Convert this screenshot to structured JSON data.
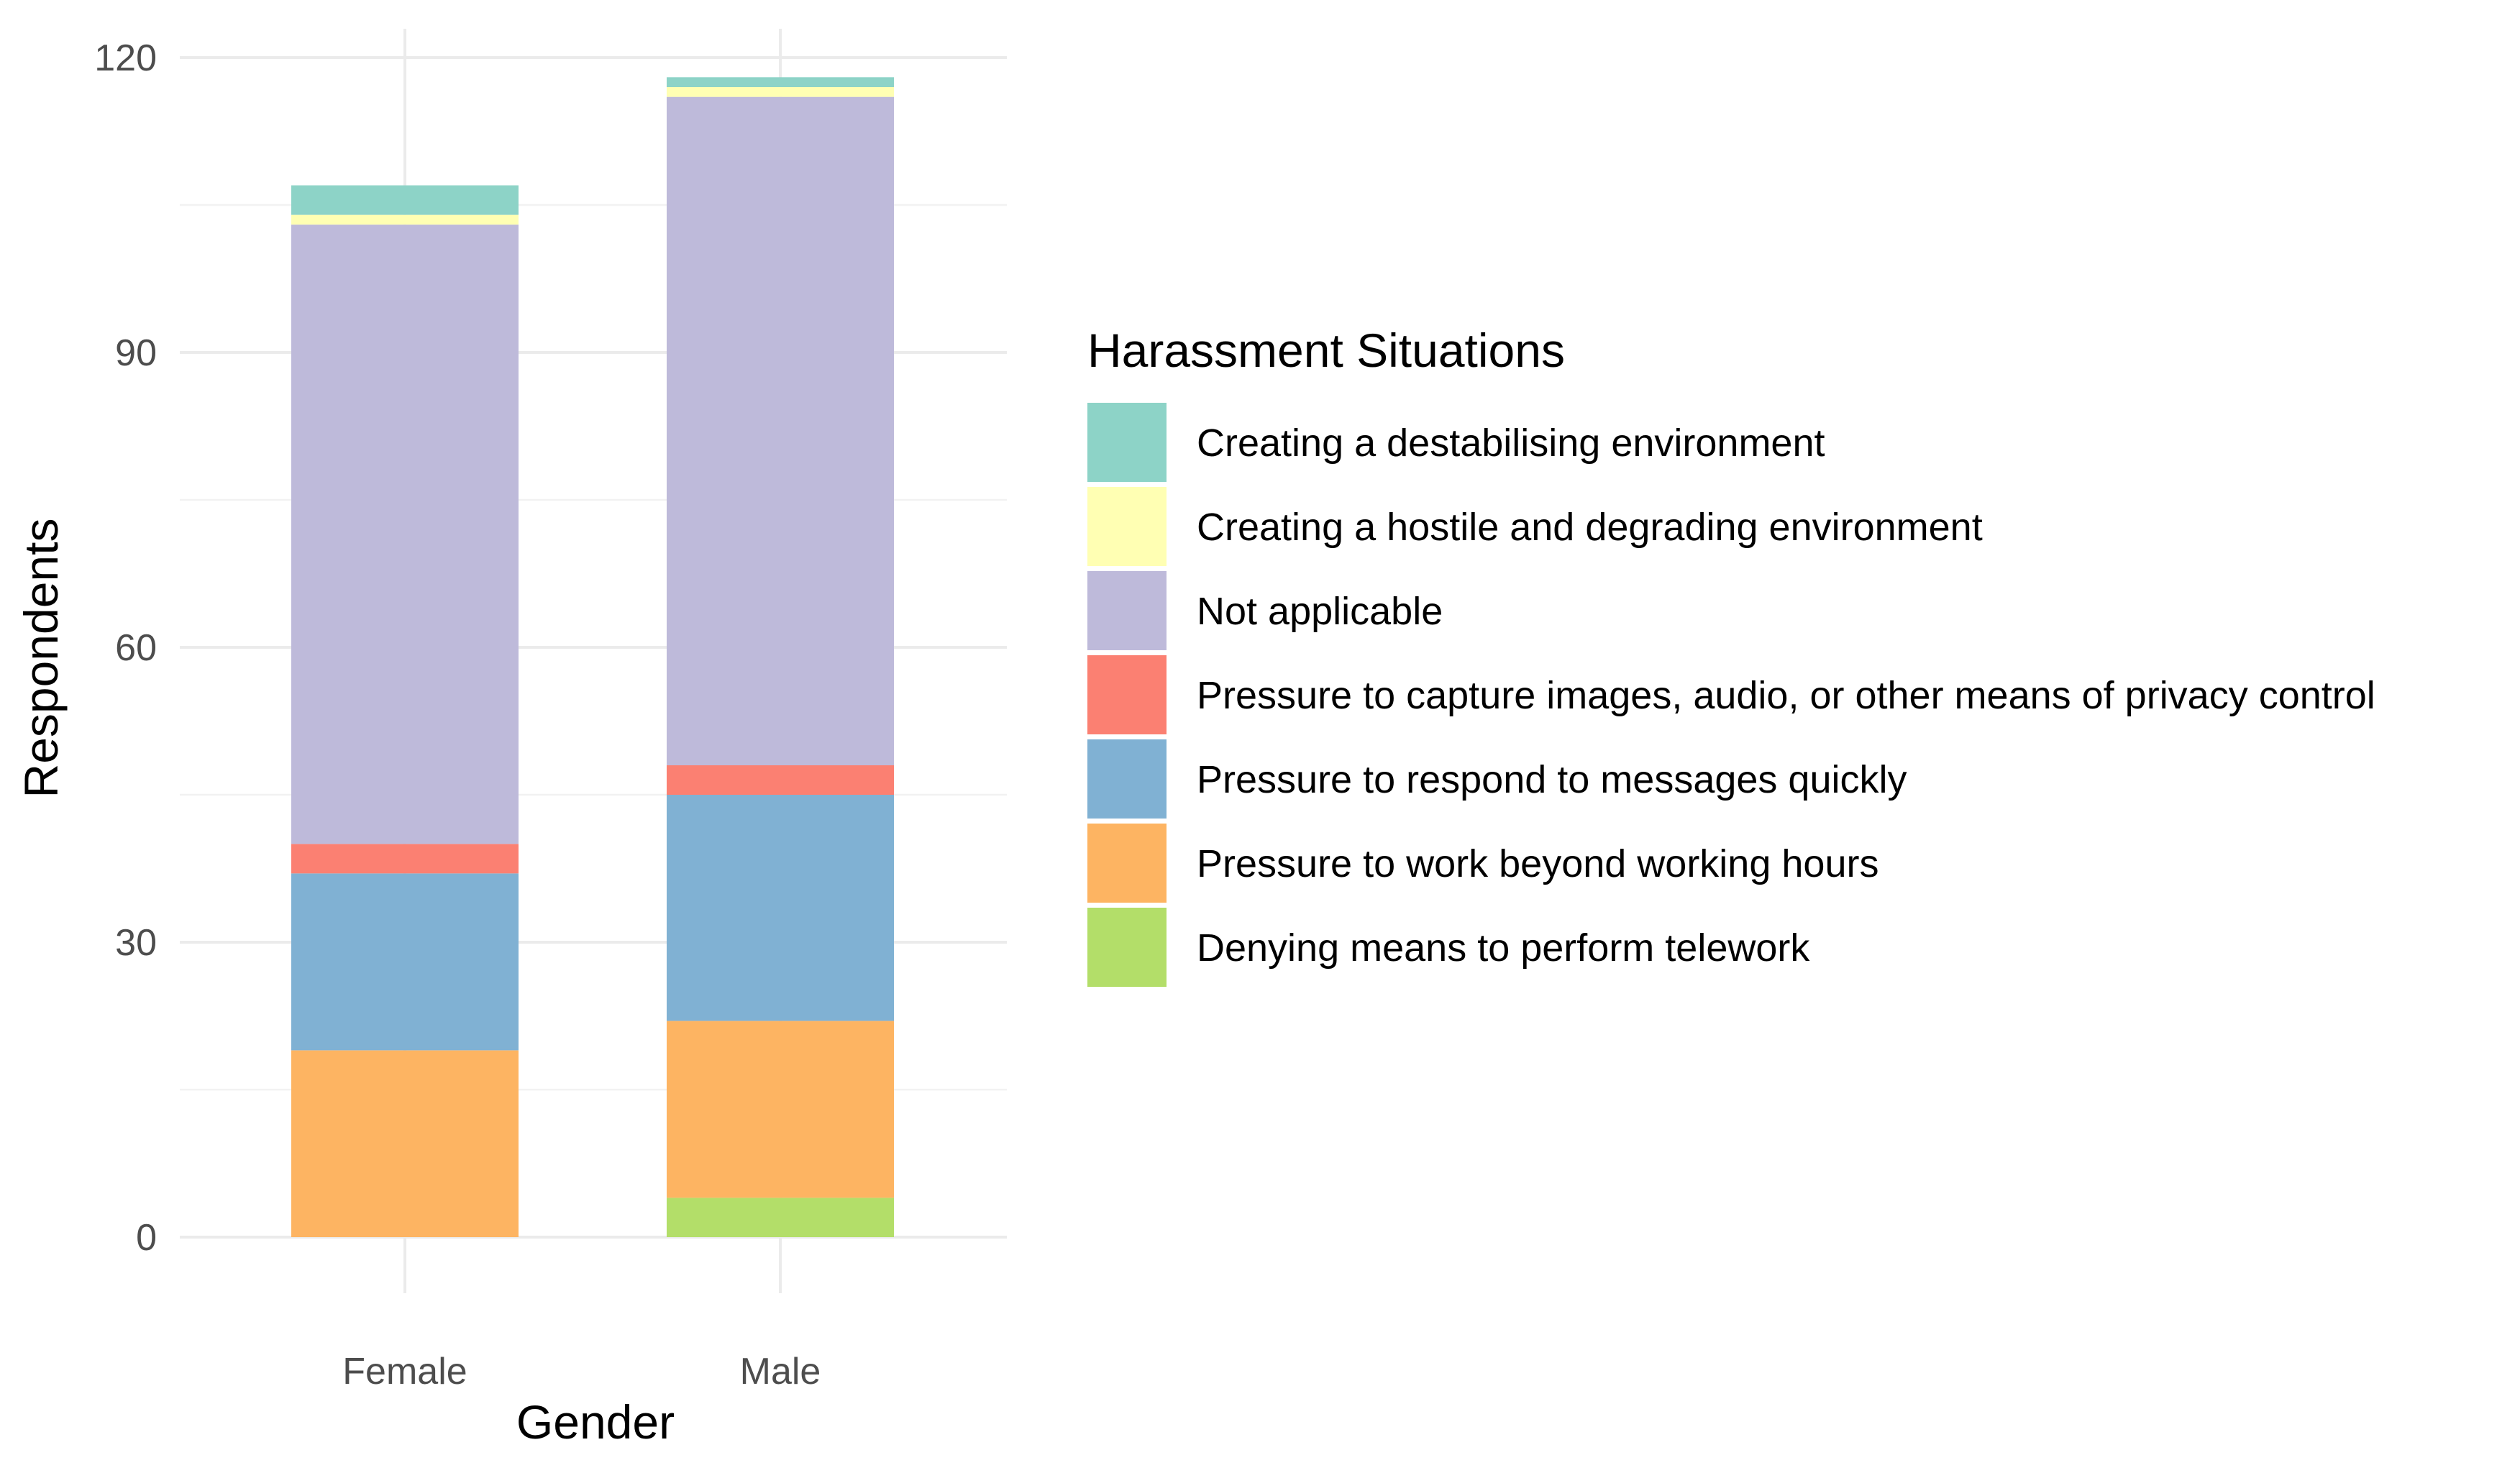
{
  "chart_data": {
    "type": "bar",
    "stacked": true,
    "title": "",
    "xlabel": "Gender",
    "ylabel": "Respondents",
    "categories": [
      "Female",
      "Male"
    ],
    "ylim": [
      0,
      120
    ],
    "yticks": [
      0,
      30,
      60,
      90,
      120
    ],
    "grid": true,
    "legend": {
      "title": "Harassment Situations",
      "placement": "right"
    },
    "series": [
      {
        "name": "Denying means to perform telework",
        "color": "#B3DE69",
        "values": [
          0,
          4
        ]
      },
      {
        "name": "Pressure to work beyond working hours",
        "color": "#FDB462",
        "values": [
          19,
          18
        ]
      },
      {
        "name": "Pressure to respond to messages quickly",
        "color": "#80B1D3",
        "values": [
          18,
          23
        ]
      },
      {
        "name": "Pressure to capture images, audio, or other means of privacy control",
        "color": "#FB8072",
        "values": [
          3,
          3
        ]
      },
      {
        "name": "Not applicable",
        "color": "#BEBADA",
        "values": [
          63,
          68
        ]
      },
      {
        "name": "Creating a hostile and degrading environment",
        "color": "#FFFFB3",
        "values": [
          1,
          1
        ]
      },
      {
        "name": "Creating a destabilising environment",
        "color": "#8DD3C7",
        "values": [
          3,
          1
        ]
      }
    ]
  }
}
